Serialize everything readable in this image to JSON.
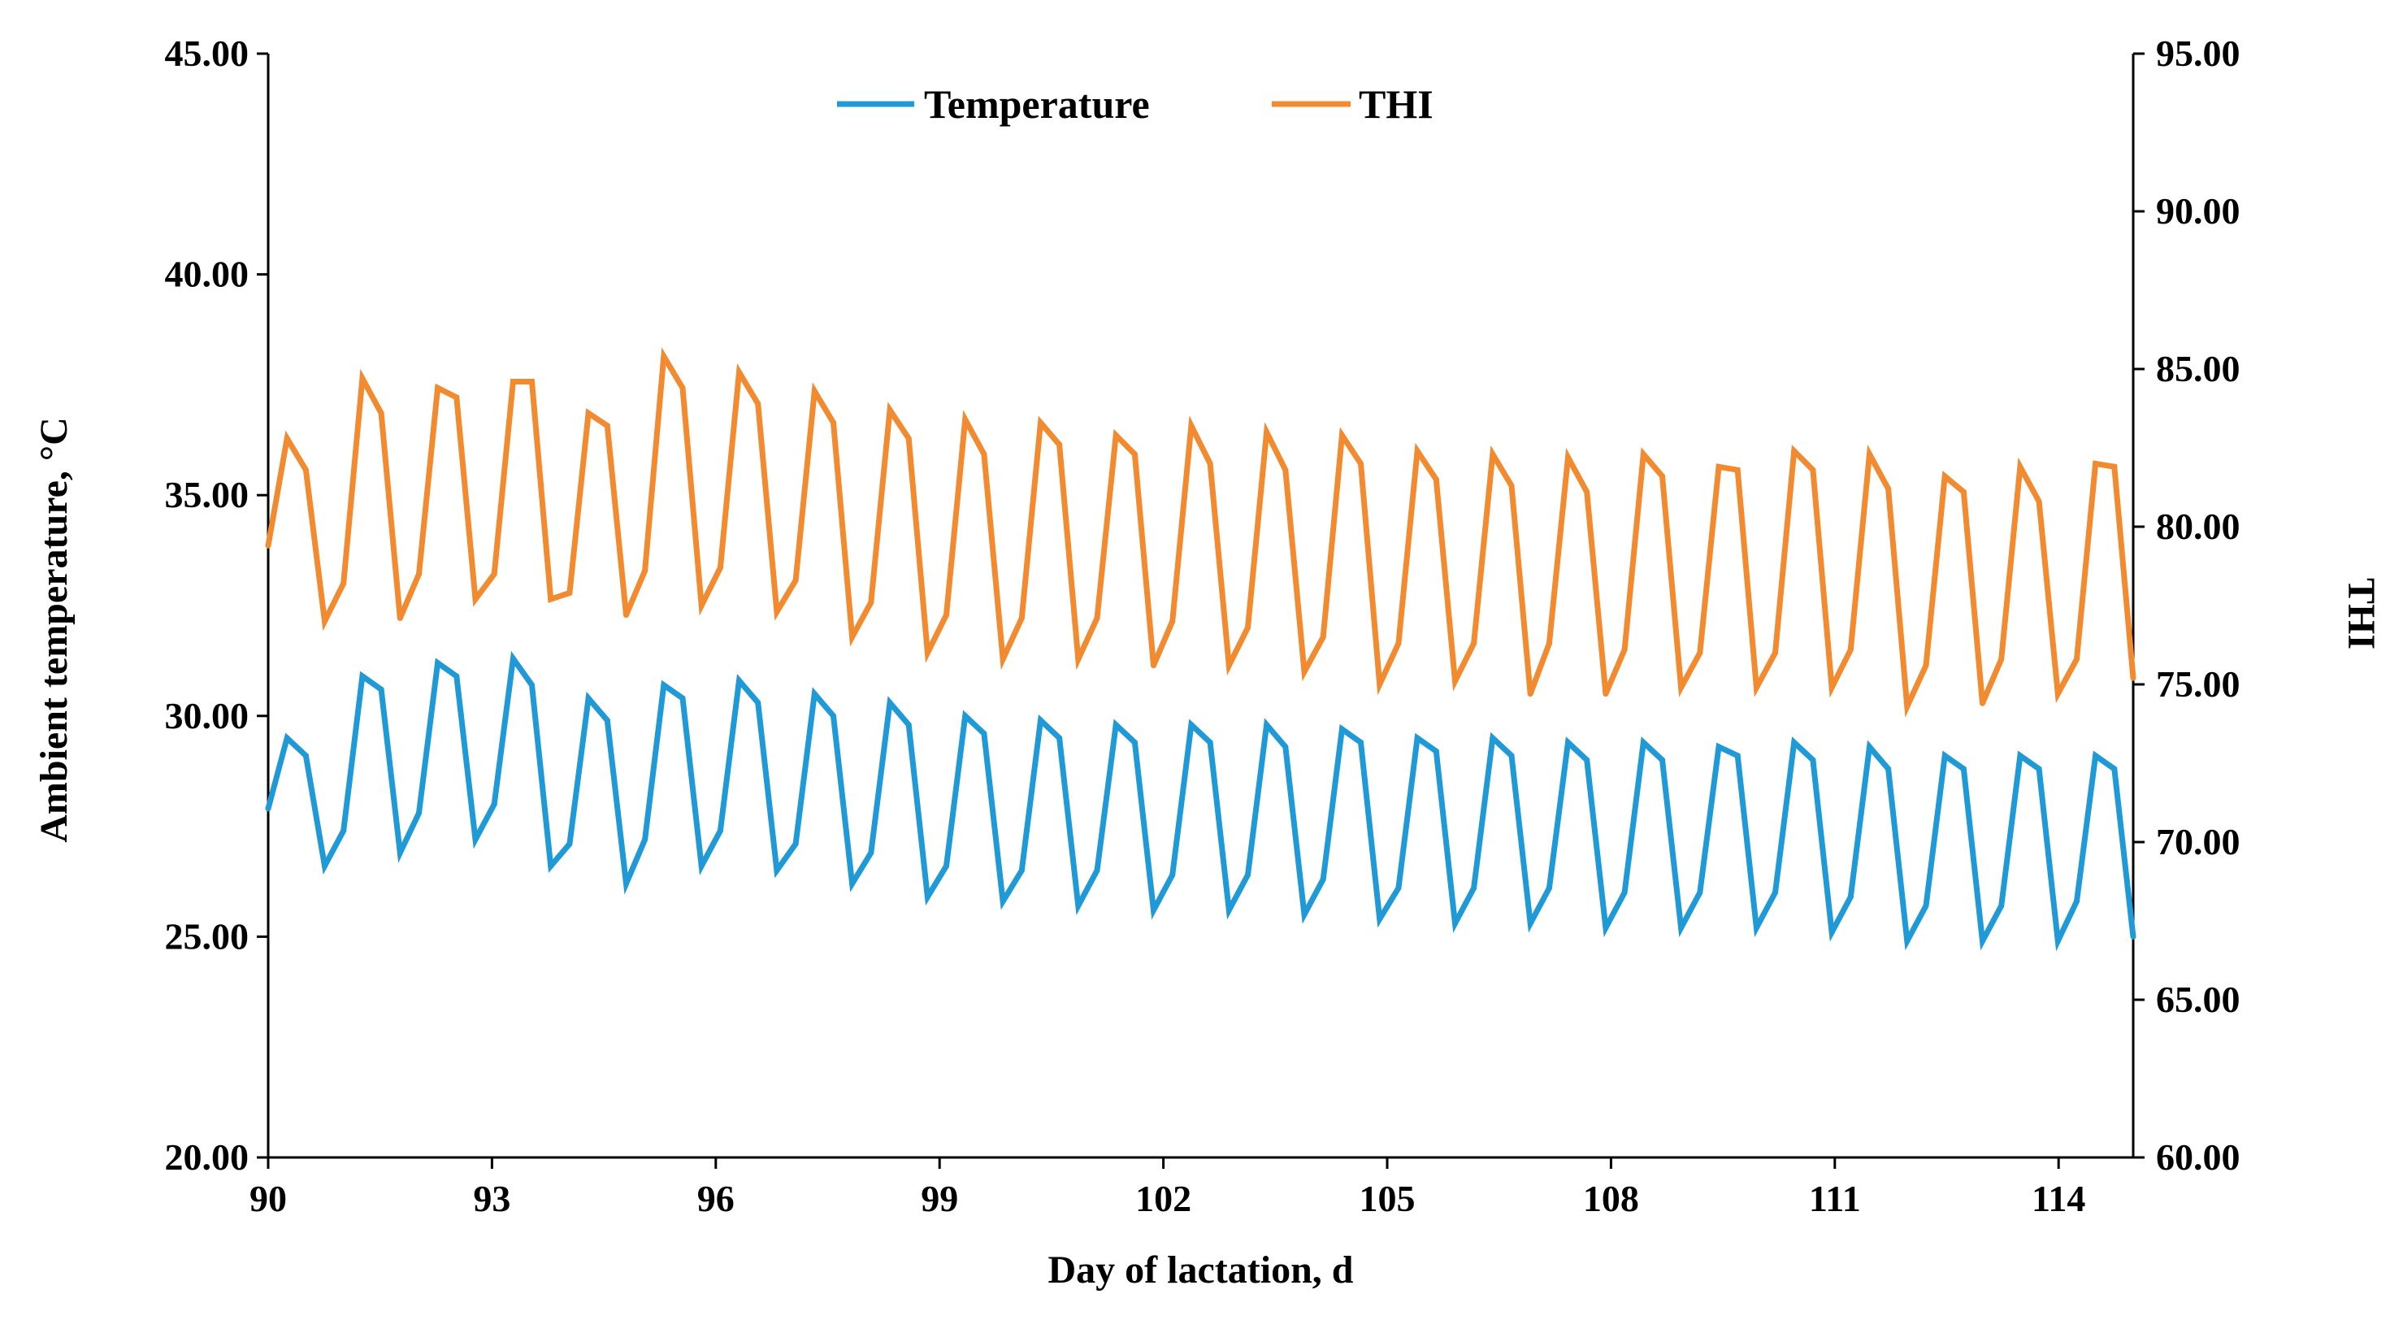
{
  "chart_data": {
    "type": "line",
    "xlabel": "Day of lactation, d",
    "ylabel_left": "Ambient temperature, °C",
    "ylabel_right": "THI",
    "xlim": [
      90,
      115
    ],
    "ylim_left": [
      20,
      45
    ],
    "ylim_right": [
      60,
      95
    ],
    "x_ticks": [
      90,
      93,
      96,
      99,
      102,
      105,
      108,
      111,
      114
    ],
    "y_left_ticks": [
      "20.00",
      "25.00",
      "30.00",
      "35.00",
      "40.00",
      "45.00"
    ],
    "y_right_ticks": [
      "60.00",
      "65.00",
      "70.00",
      "75.00",
      "80.00",
      "85.00",
      "90.00",
      "95.00"
    ],
    "legend": [
      "Temperature",
      "THI"
    ],
    "legend_position": "top-center",
    "grid": false,
    "series": [
      {
        "name": "Temperature",
        "axis": "left",
        "color": "#1f9ad6",
        "values": [
          27.9,
          29.5,
          29.1,
          26.6,
          27.4,
          30.9,
          30.6,
          26.9,
          27.8,
          31.2,
          30.9,
          27.2,
          28.0,
          31.3,
          30.7,
          26.6,
          27.1,
          30.4,
          29.9,
          26.2,
          27.2,
          30.7,
          30.4,
          26.6,
          27.4,
          30.8,
          30.3,
          26.5,
          27.1,
          30.5,
          30.0,
          26.2,
          26.9,
          30.3,
          29.8,
          25.9,
          26.6,
          30.0,
          29.6,
          25.8,
          26.5,
          29.9,
          29.5,
          25.7,
          26.5,
          29.8,
          29.4,
          25.6,
          26.4,
          29.8,
          29.4,
          25.6,
          26.4,
          29.8,
          29.3,
          25.5,
          26.3,
          29.7,
          29.4,
          25.4,
          26.1,
          29.5,
          29.2,
          25.3,
          26.1,
          29.5,
          29.1,
          25.3,
          26.1,
          29.4,
          29.0,
          25.2,
          26.0,
          29.4,
          29.0,
          25.2,
          26.0,
          29.3,
          29.1,
          25.2,
          26.0,
          29.4,
          29.0,
          25.1,
          25.9,
          29.3,
          28.8,
          24.9,
          25.7,
          29.1,
          28.8,
          24.9,
          25.7,
          29.1,
          28.8,
          24.9,
          25.8,
          29.1,
          28.8,
          25.0
        ]
      },
      {
        "name": "THI",
        "axis": "right",
        "color": "#f28a30",
        "values": [
          79.4,
          82.8,
          81.8,
          77.0,
          78.2,
          84.7,
          83.6,
          77.1,
          78.5,
          84.4,
          84.1,
          77.7,
          78.5,
          84.6,
          84.6,
          77.7,
          77.9,
          83.6,
          83.2,
          77.2,
          78.6,
          85.4,
          84.4,
          77.5,
          78.7,
          84.9,
          83.9,
          77.3,
          78.3,
          84.3,
          83.3,
          76.5,
          77.6,
          83.7,
          82.8,
          76.0,
          77.2,
          83.4,
          82.3,
          75.8,
          77.1,
          83.3,
          82.6,
          75.8,
          77.1,
          82.9,
          82.3,
          75.6,
          77.0,
          83.2,
          82.0,
          75.6,
          76.8,
          83.0,
          81.8,
          75.4,
          76.5,
          82.9,
          82.0,
          75.0,
          76.3,
          82.4,
          81.5,
          75.1,
          76.3,
          82.3,
          81.3,
          74.7,
          76.3,
          82.2,
          81.1,
          74.7,
          76.1,
          82.3,
          81.6,
          74.9,
          76.0,
          81.9,
          81.8,
          74.9,
          76.0,
          82.4,
          81.8,
          74.9,
          76.1,
          82.3,
          81.2,
          74.3,
          75.6,
          81.6,
          81.1,
          74.4,
          75.8,
          81.9,
          80.8,
          74.7,
          75.8,
          82.0,
          81.9,
          75.2
        ]
      }
    ]
  }
}
